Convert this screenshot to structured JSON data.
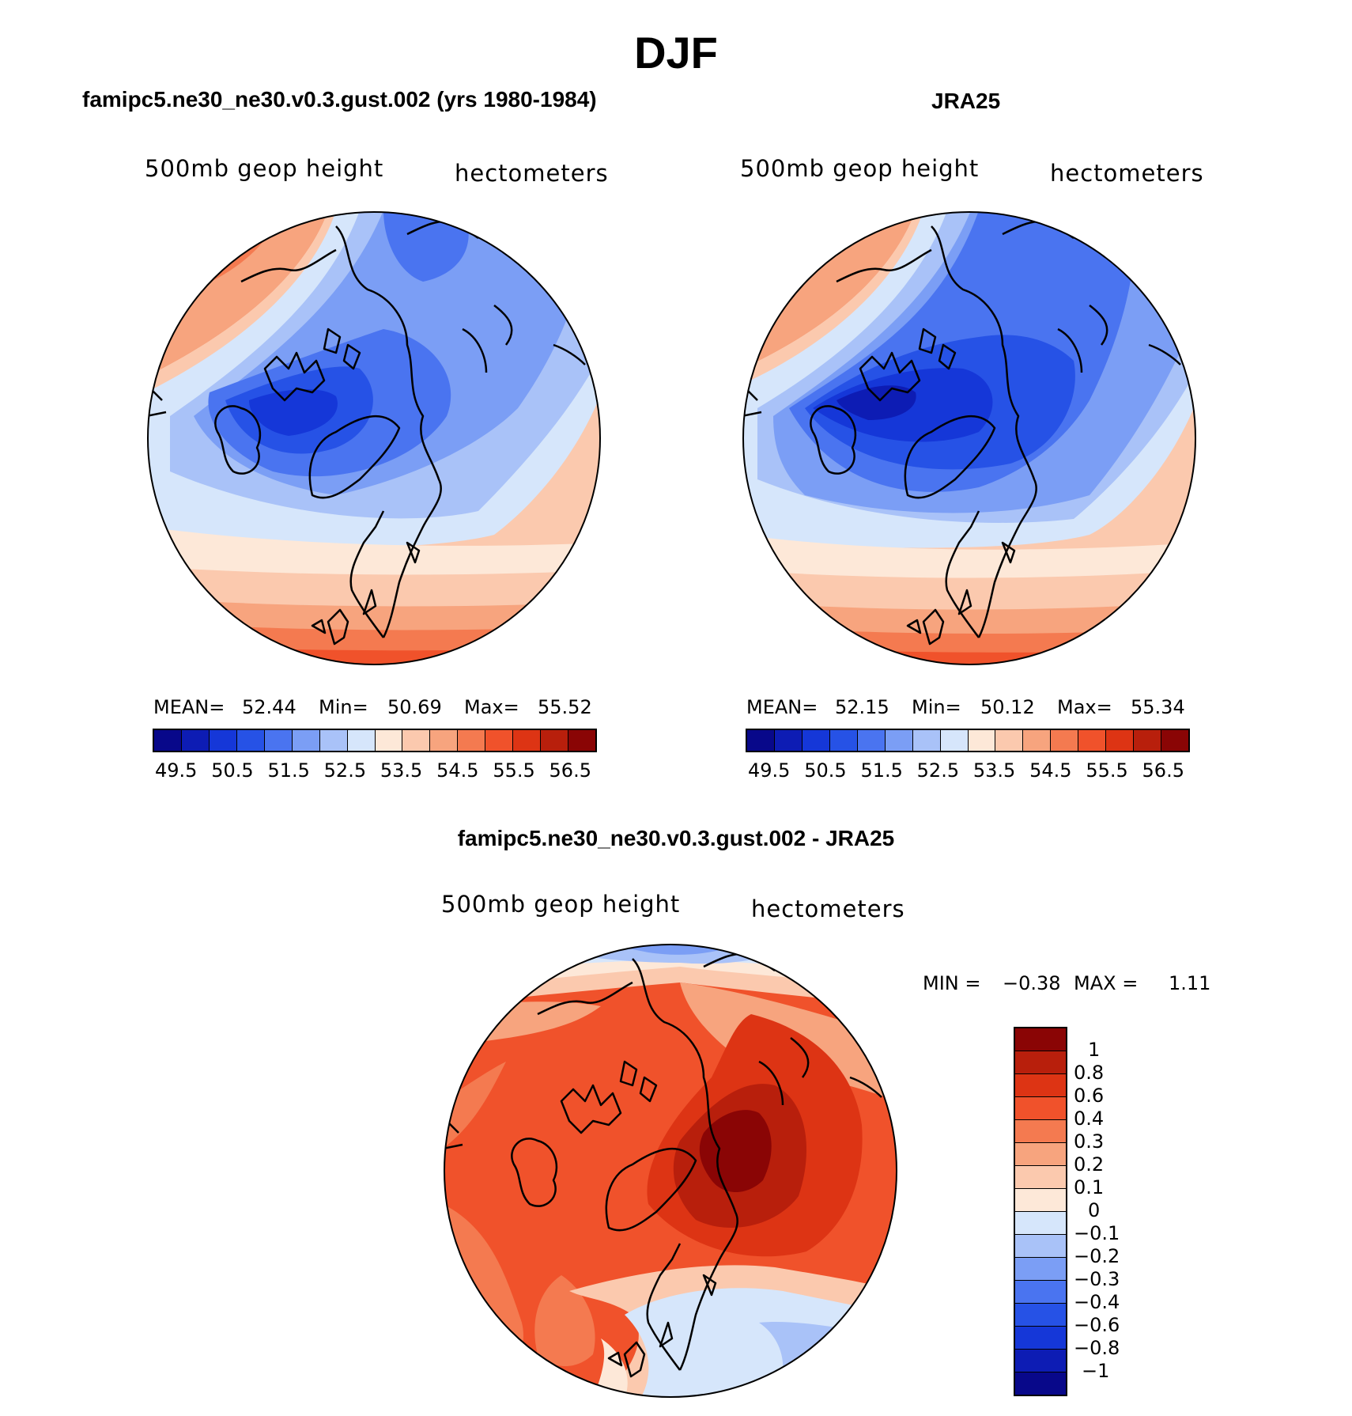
{
  "figure": {
    "title": "DJF"
  },
  "panels": {
    "model": {
      "title": "famipc5.ne30_ne30.v0.3.gust.002 (yrs 1980-1984)",
      "left_label": "500mb geop height",
      "right_label": "hectometers",
      "stats": {
        "mean_label": "MEAN=",
        "mean": "52.44",
        "min_label": "Min=",
        "min": "50.69",
        "max_label": "Max=",
        "max": "55.52"
      }
    },
    "obs": {
      "title": "JRA25",
      "left_label": "500mb geop height",
      "right_label": "hectometers",
      "stats": {
        "mean_label": "MEAN=",
        "mean": "52.15",
        "min_label": "Min=",
        "min": "50.12",
        "max_label": "Max=",
        "max": "55.34"
      }
    },
    "diff": {
      "title": "famipc5.ne30_ne30.v0.3.gust.002 - JRA25",
      "left_label": "500mb geop height",
      "right_label": "hectometers",
      "minmax": {
        "min_label": "MIN =",
        "min": "−0.38",
        "max_label": "MAX =",
        "max": "1.11"
      }
    }
  },
  "colorbar_field": {
    "tick_labels": [
      "49.5",
      "50.5",
      "51.5",
      "52.5",
      "53.5",
      "54.5",
      "55.5",
      "56.5"
    ],
    "colors": [
      "#08088a",
      "#0d1cb4",
      "#1537d8",
      "#2652e6",
      "#4a74f0",
      "#7b9ef5",
      "#a9c2f8",
      "#d6e6fb",
      "#fde8d8",
      "#fbc9ae",
      "#f7a47e",
      "#f47a50",
      "#f0522b",
      "#dd3414",
      "#b81f0c",
      "#8a0505"
    ]
  },
  "colorbar_diff": {
    "tick_labels": [
      "1",
      "0.8",
      "0.6",
      "0.4",
      "0.3",
      "0.2",
      "0.1",
      "0",
      "−0.1",
      "−0.2",
      "−0.3",
      "−0.4",
      "−0.6",
      "−0.8",
      "−1"
    ],
    "colors": [
      "#8a0505",
      "#b81f0c",
      "#dd3414",
      "#f0522b",
      "#f47a50",
      "#f7a47e",
      "#fbc9ae",
      "#fde8d8",
      "#d6e6fb",
      "#a9c2f8",
      "#7b9ef5",
      "#4a74f0",
      "#2652e6",
      "#1537d8",
      "#0d1cb4",
      "#08088a"
    ]
  }
}
